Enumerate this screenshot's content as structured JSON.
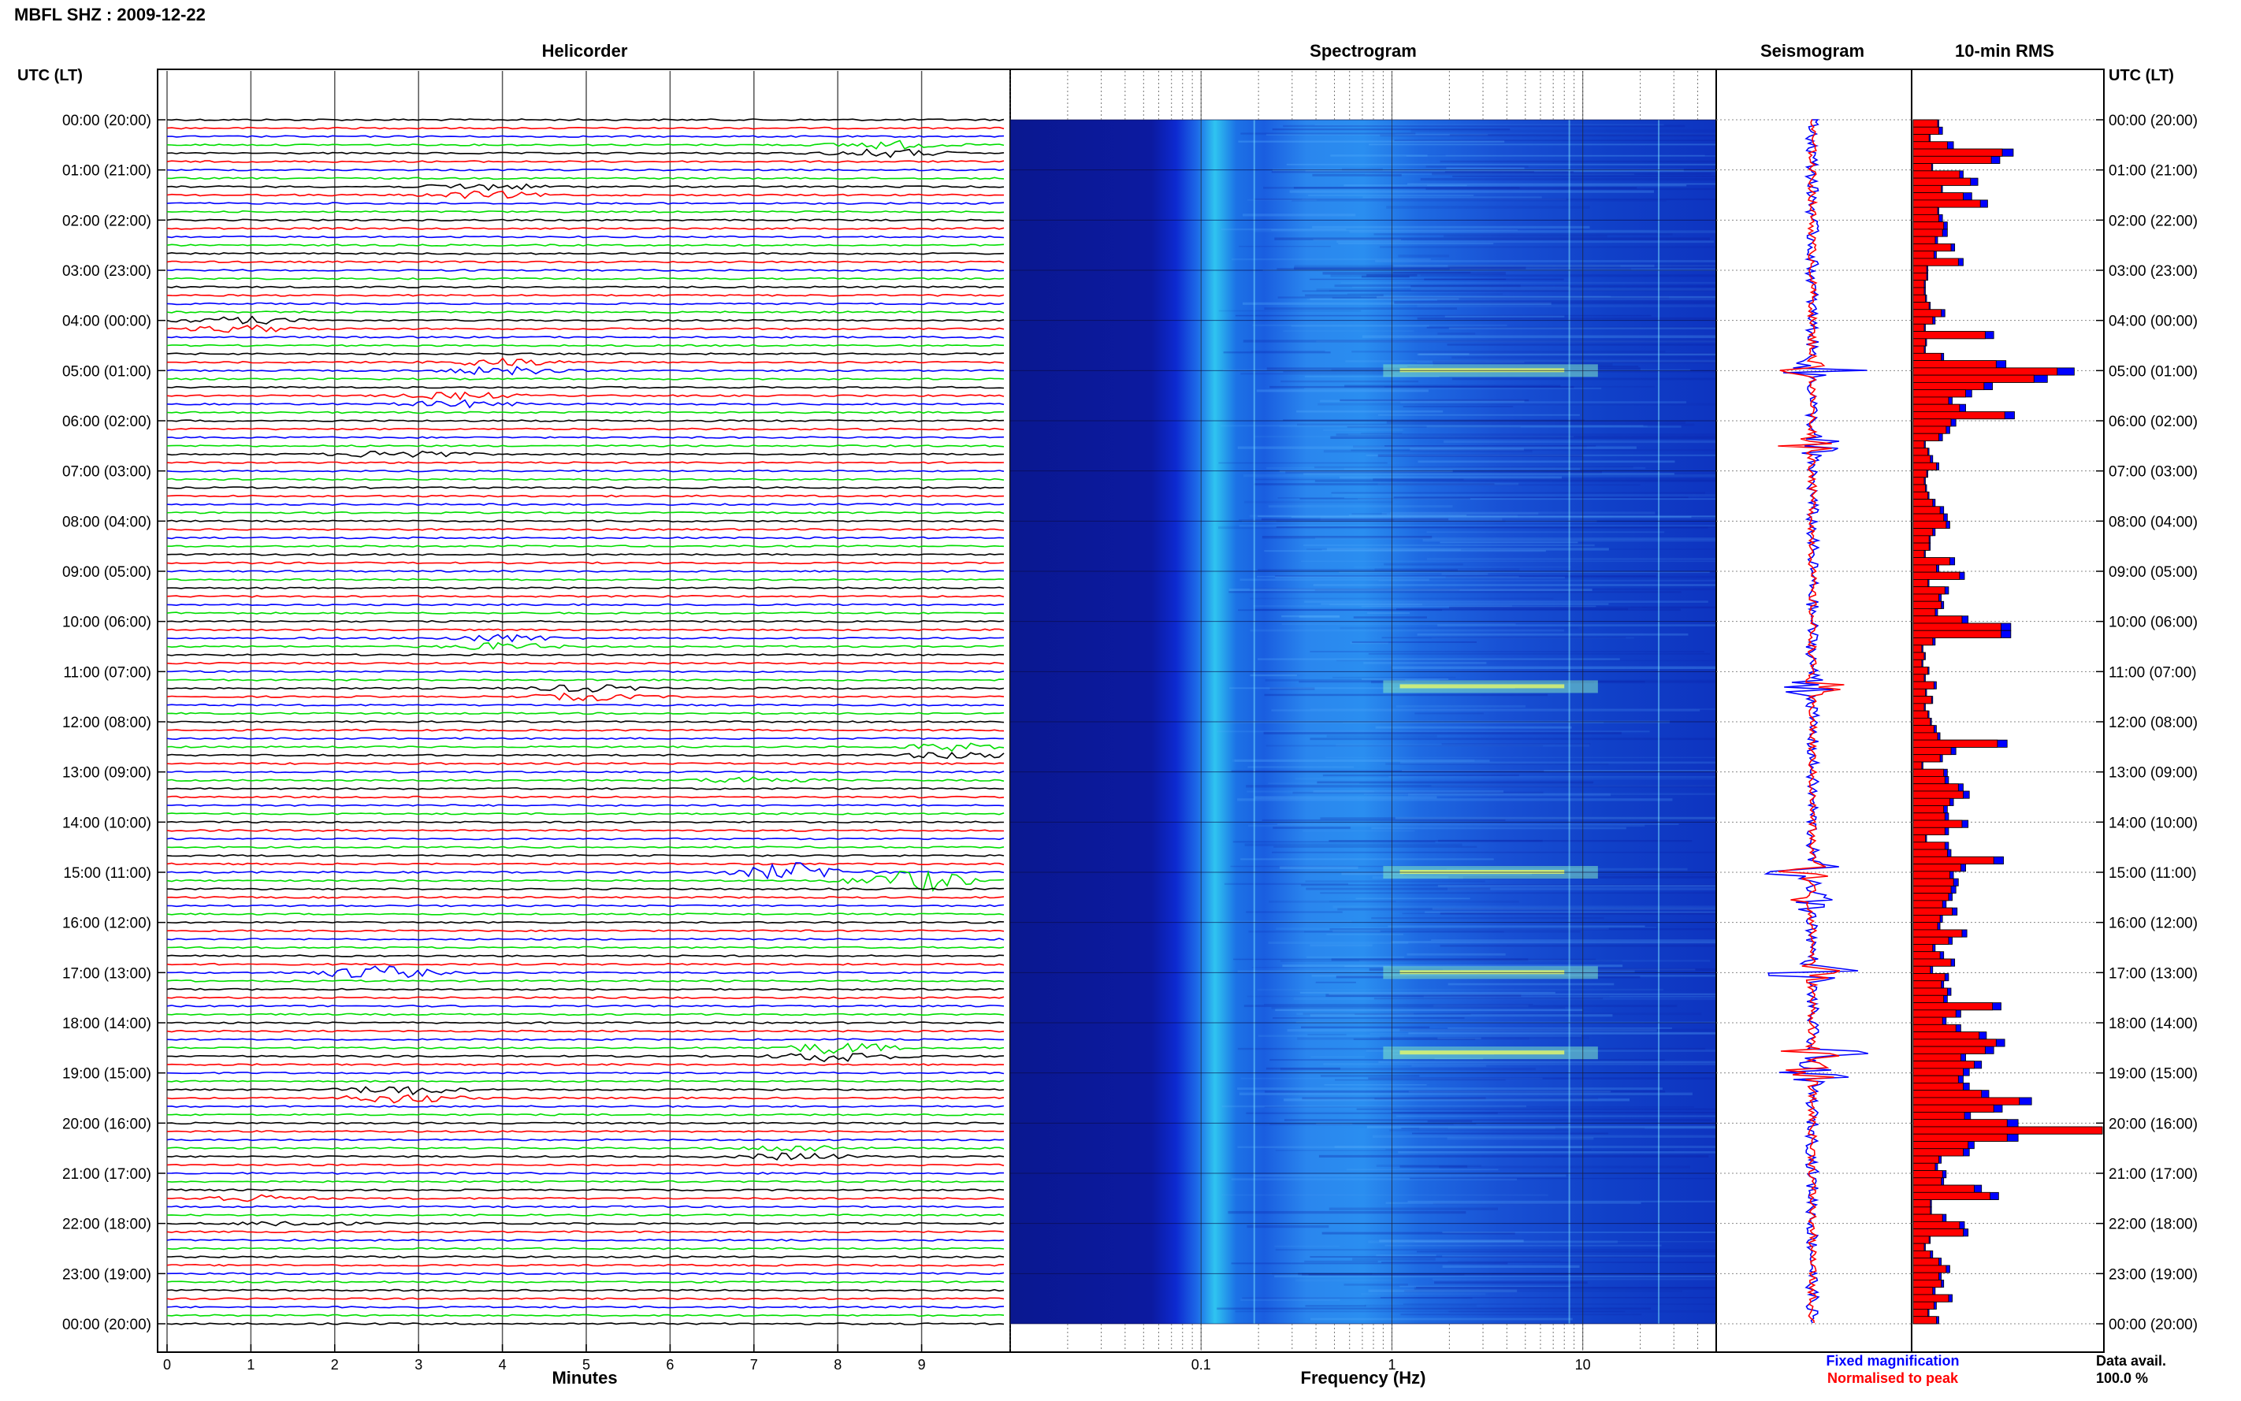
{
  "header": {
    "title": "MBFL SHZ : 2009-12-22"
  },
  "panels": {
    "helicorder": "Helicorder",
    "spectrogram": "Spectrogram",
    "seismogram": "Seismogram",
    "rms": "10-min RMS"
  },
  "axes": {
    "time_label_left": "UTC (LT)",
    "time_label_right": "UTC (LT)",
    "minutes_label": "Minutes",
    "frequency_label": "Frequency (Hz)"
  },
  "legend": {
    "fixed": "Fixed magnification",
    "normalised": "Normalised to peak",
    "data_avail_label": "Data avail.",
    "data_avail_value": "100.0 %"
  },
  "colors": {
    "helicorder_trace_cycle": [
      "#000000",
      "#ff0000",
      "#0000ff",
      "#00dd00"
    ],
    "fixed": "#0000ff",
    "normalised": "#ff0000",
    "spectrogram_base": "#0a1f9e",
    "spectrogram_hot": "#f0ff60"
  },
  "chart_data": [
    {
      "type": "line",
      "name": "helicorder",
      "title": "Helicorder",
      "xlabel": "Minutes",
      "ylabel": "UTC (LT)",
      "x_ticks": [
        "0",
        "1",
        "2",
        "3",
        "4",
        "5",
        "6",
        "7",
        "8",
        "9"
      ],
      "xlim": [
        0,
        10
      ],
      "y_tick_labels": [
        "00:00 (20:00)",
        "01:00 (21:00)",
        "02:00 (22:00)",
        "03:00 (23:00)",
        "04:00 (00:00)",
        "05:00 (01:00)",
        "06:00 (02:00)",
        "07:00 (03:00)",
        "08:00 (04:00)",
        "09:00 (05:00)",
        "10:00 (06:00)",
        "11:00 (07:00)",
        "12:00 (08:00)",
        "13:00 (09:00)",
        "14:00 (10:00)",
        "15:00 (11:00)",
        "16:00 (12:00)",
        "17:00 (13:00)",
        "18:00 (14:00)",
        "19:00 (15:00)",
        "20:00 (16:00)",
        "21:00 (17:00)",
        "22:00 (18:00)",
        "23:00 (19:00)",
        "00:00 (20:00)"
      ],
      "lines_per_hour": 6,
      "hours": 24,
      "events": [
        {
          "hour": 0.6,
          "minute": 8.6,
          "amp": 0.7
        },
        {
          "hour": 1.4,
          "minute": 3.8,
          "amp": 0.6
        },
        {
          "hour": 4.1,
          "minute": 0.9,
          "amp": 0.6
        },
        {
          "hour": 4.9,
          "minute": 4.0,
          "amp": 0.7
        },
        {
          "hour": 5.6,
          "minute": 3.5,
          "amp": 0.6
        },
        {
          "hour": 6.7,
          "minute": 2.8,
          "amp": 0.8
        },
        {
          "hour": 10.4,
          "minute": 4.0,
          "amp": 0.6
        },
        {
          "hour": 11.4,
          "minute": 5.0,
          "amp": 0.6
        },
        {
          "hour": 12.6,
          "minute": 9.4,
          "amp": 0.6
        },
        {
          "hour": 13.2,
          "minute": 7.0,
          "amp": 0.6
        },
        {
          "hour": 15.0,
          "minute": 7.5,
          "amp": 1.6
        },
        {
          "hour": 15.2,
          "minute": 8.9,
          "amp": 2.0
        },
        {
          "hour": 17.0,
          "minute": 2.5,
          "amp": 1.2
        },
        {
          "hour": 18.6,
          "minute": 8.0,
          "amp": 1.0
        },
        {
          "hour": 19.4,
          "minute": 2.8,
          "amp": 0.8
        },
        {
          "hour": 20.6,
          "minute": 7.5,
          "amp": 0.6
        },
        {
          "hour": 21.5,
          "minute": 1.0,
          "amp": 0.6
        },
        {
          "hour": 22.0,
          "minute": 1.5,
          "amp": 0.5
        }
      ]
    },
    {
      "type": "heatmap",
      "name": "spectrogram",
      "title": "Spectrogram",
      "xlabel": "Frequency (Hz)",
      "x_scale": "log",
      "xlim": [
        0.01,
        50
      ],
      "x_tick_labels": [
        "0.1",
        "1",
        "10"
      ],
      "x_ticks": [
        0.1,
        1,
        10
      ],
      "hot_bands_hour": [
        5.0,
        11.3,
        18.6,
        15.0,
        17.0
      ],
      "narrowband_lines_hz": [
        0.19,
        8.5,
        25
      ]
    },
    {
      "type": "line",
      "name": "seismogram",
      "title": "Seismogram",
      "bursts_hour": [
        5.0,
        6.5,
        11.3,
        15.0,
        15.6,
        17.0,
        18.6,
        19.0
      ]
    },
    {
      "type": "bar",
      "name": "rms",
      "title": "10-min RMS",
      "orientation": "horizontal",
      "series": [
        {
          "name": "Fixed magnification",
          "color": "#0000ff",
          "values": [
            2.1,
            2.4,
            1.4,
            3.3,
            8.2,
            7.1,
            1.6,
            4.1,
            5.3,
            2.4,
            4.8,
            6.1,
            2.1,
            2.4,
            2.8,
            2.8,
            2.0,
            3.4,
            1.9,
            4.1,
            1.2,
            1.2,
            1.0,
            1.0,
            1.1,
            1.4,
            2.6,
            1.8,
            1.0,
            6.6,
            1.1,
            1.0,
            2.5,
            7.6,
            13.2,
            11.0,
            6.5,
            4.8,
            3.2,
            4.3,
            8.3,
            3.5,
            3.0,
            2.4,
            1.0,
            1.3,
            1.6,
            2.1,
            1.2,
            1.0,
            1.1,
            1.3,
            1.8,
            2.5,
            2.8,
            3.0,
            1.8,
            1.4,
            1.4,
            1.0,
            3.4,
            2.1,
            4.2,
            1.3,
            2.9,
            2.3,
            2.5,
            2.0,
            4.5,
            8.0,
            8.0,
            1.8,
            0.8,
            1.0,
            0.8,
            1.3,
            1.0,
            1.9,
            1.1,
            1.6,
            1.0,
            1.3,
            1.5,
            1.9,
            2.2,
            7.7,
            3.5,
            2.4,
            0.8,
            2.8,
            2.9,
            4.1,
            4.6,
            3.3,
            2.8,
            2.9,
            4.5,
            2.9,
            1.1,
            2.9,
            3.1,
            7.4,
            4.3,
            3.3,
            3.7,
            3.5,
            3.2,
            2.7,
            3.6,
            2.4,
            2.2,
            4.4,
            3.2,
            1.8,
            2.5,
            3.4,
            1.6,
            2.9,
            2.5,
            3.1,
            2.8,
            7.2,
            3.9,
            2.7,
            3.9,
            6.0,
            7.5,
            6.6,
            4.3,
            5.6,
            4.6,
            4.1,
            4.6,
            6.2,
            9.7,
            7.3,
            4.7,
            8.6,
            15.5,
            8.6,
            5.0,
            4.6,
            2.3,
            2.0,
            2.7,
            2.5,
            5.6,
            7.0,
            1.5,
            1.5,
            2.7,
            4.2,
            4.5,
            1.4,
            1.0,
            1.6,
            2.3,
            3.0,
            2.3,
            2.5,
            1.8,
            3.2,
            1.9,
            1.3,
            2.1
          ]
        },
        {
          "name": "Normalised to peak",
          "color": "#ff0000",
          "values": [
            2.0,
            2.1,
            1.3,
            2.8,
            7.3,
            6.4,
            1.5,
            3.8,
            4.7,
            2.3,
            4.1,
            5.5,
            2.0,
            2.1,
            2.5,
            2.4,
            1.8,
            3.1,
            1.7,
            3.7,
            1.1,
            1.1,
            0.9,
            0.9,
            1.0,
            1.3,
            2.3,
            1.6,
            0.9,
            5.9,
            1.0,
            0.9,
            2.3,
            6.8,
            11.8,
            9.9,
            5.8,
            4.3,
            2.9,
            3.8,
            7.5,
            3.1,
            2.7,
            2.1,
            0.9,
            1.2,
            1.4,
            1.9,
            1.1,
            0.9,
            1.0,
            1.2,
            1.6,
            2.2,
            2.5,
            2.7,
            1.6,
            1.3,
            1.3,
            0.9,
            3.0,
            1.9,
            3.8,
            1.2,
            2.6,
            2.1,
            2.3,
            1.8,
            4.0,
            7.2,
            7.2,
            1.6,
            0.7,
            0.9,
            0.7,
            1.2,
            0.9,
            1.7,
            1.0,
            1.5,
            0.9,
            1.2,
            1.4,
            1.7,
            2.0,
            6.9,
            3.1,
            2.2,
            0.7,
            2.5,
            2.6,
            3.7,
            4.1,
            3.0,
            2.5,
            2.6,
            4.0,
            2.6,
            1.0,
            2.6,
            2.8,
            6.6,
            3.9,
            3.0,
            3.3,
            3.1,
            2.9,
            2.4,
            3.2,
            2.2,
            2.0,
            4.0,
            2.9,
            1.6,
            2.2,
            3.1,
            1.4,
            2.6,
            2.3,
            2.8,
            2.5,
            6.5,
            3.5,
            2.4,
            3.5,
            5.4,
            6.8,
            5.9,
            3.9,
            5.0,
            4.1,
            3.7,
            4.1,
            5.6,
            8.7,
            6.6,
            4.2,
            7.7,
            15.5,
            7.7,
            4.5,
            4.1,
            2.1,
            1.8,
            2.4,
            2.3,
            5.0,
            6.3,
            1.4,
            1.4,
            2.4,
            3.8,
            4.1,
            1.3,
            0.9,
            1.4,
            2.1,
            2.7,
            2.1,
            2.3,
            1.6,
            2.9,
            1.7,
            1.2,
            1.9
          ]
        }
      ]
    }
  ]
}
